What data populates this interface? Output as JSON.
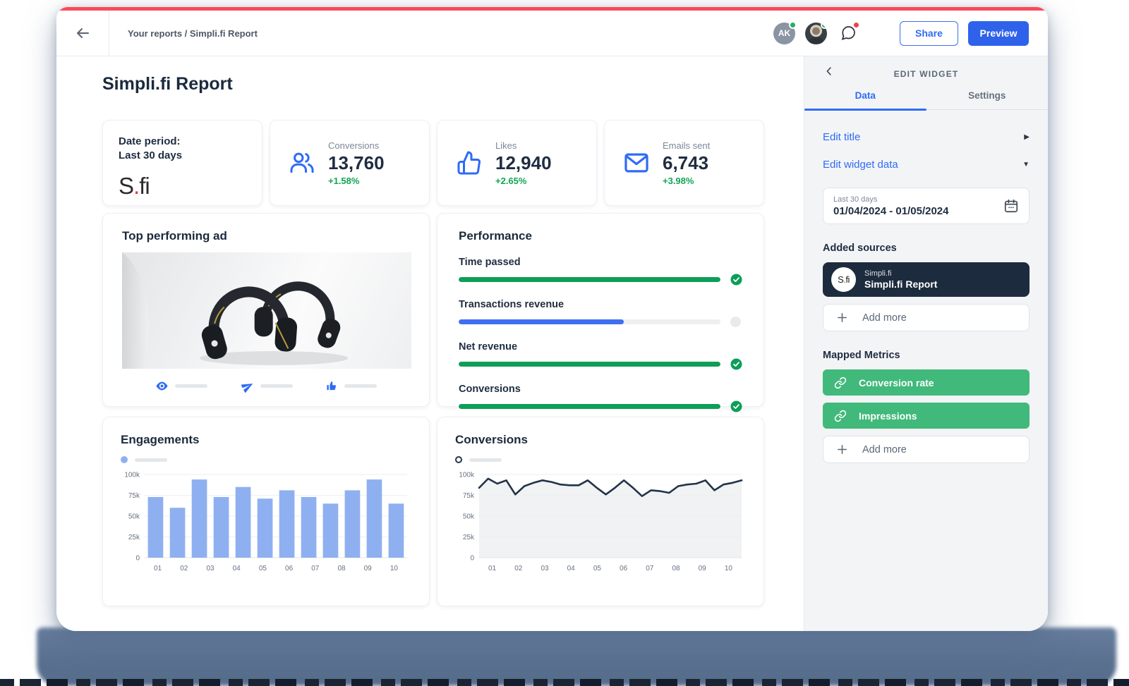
{
  "topbar": {
    "breadcrumb": "Your reports / Simpli.fi Report",
    "avatar_initials": "AK",
    "share_label": "Share",
    "preview_label": "Preview"
  },
  "page": {
    "title": "Simpli.fi Report"
  },
  "date_card": {
    "line1": "Date period:",
    "line2": "Last 30 days",
    "logo": {
      "s": "S",
      "dot": ".",
      "fi": "fi"
    }
  },
  "kpis": [
    {
      "icon": "users-icon",
      "label": "Conversions",
      "value": "13,760",
      "delta": "+1.58%"
    },
    {
      "icon": "thumbs-up-icon",
      "label": "Likes",
      "value": "12,940",
      "delta": "+2.65%"
    },
    {
      "icon": "mail-icon",
      "label": "Emails sent",
      "value": "6,743",
      "delta": "+3.98%"
    }
  ],
  "top_ad": {
    "title": "Top performing ad",
    "stat_icons": [
      "eye-icon",
      "send-icon",
      "thumbs-up-icon"
    ]
  },
  "performance": {
    "title": "Performance",
    "rows": [
      {
        "label": "Time passed",
        "percent": 100,
        "bar_color": "#0D9E57",
        "status": "complete"
      },
      {
        "label": "Transactions revenue",
        "percent": 63,
        "bar_color": "#3F6FF0",
        "status": "pending"
      },
      {
        "label": "Net revenue",
        "percent": 100,
        "bar_color": "#0D9E57",
        "status": "complete"
      },
      {
        "label": "Conversions",
        "percent": 100,
        "bar_color": "#0D9E57",
        "status": "complete"
      }
    ]
  },
  "chart_data": [
    {
      "type": "bar",
      "title": "Engagements",
      "x_tick_labels": [
        "01",
        "02",
        "03",
        "04",
        "05",
        "06",
        "07",
        "08",
        "09",
        "10"
      ],
      "values": [
        73000,
        60000,
        94000,
        73000,
        85000,
        71000,
        81000,
        73000,
        65000,
        81000,
        94000,
        65000
      ],
      "y_ticks": [
        0,
        25000,
        50000,
        75000,
        100000
      ],
      "y_tick_labels": [
        "0",
        "25k",
        "50k",
        "75k",
        "100k"
      ],
      "ylim": [
        0,
        100000
      ],
      "bar_color": "#8FB0F0",
      "grid": true,
      "legend": {
        "marker": "filled-dot",
        "color": "#8FB0F0",
        "position": "top-left"
      }
    },
    {
      "type": "line",
      "title": "Conversions",
      "x_tick_labels": [
        "01",
        "02",
        "03",
        "04",
        "05",
        "06",
        "07",
        "08",
        "09",
        "10"
      ],
      "values": [
        84000,
        95000,
        89000,
        93000,
        76000,
        86000,
        90000,
        93000,
        91000,
        88000,
        87000,
        87000,
        93000,
        84000,
        76000,
        84000,
        93000,
        84000,
        74000,
        81000,
        80000,
        78000,
        86000,
        88000,
        89000,
        93000,
        81000,
        88000,
        90000,
        93000
      ],
      "y_ticks": [
        0,
        25000,
        50000,
        75000,
        100000
      ],
      "y_tick_labels": [
        "0",
        "25k",
        "50k",
        "75k",
        "100k"
      ],
      "ylim": [
        0,
        100000
      ],
      "line_color": "#223349",
      "area_color": "#F1F2F3",
      "grid": true,
      "legend": {
        "marker": "hollow-dot",
        "color": "#27364C",
        "position": "top-left"
      }
    }
  ],
  "panel": {
    "header": "EDIT WIDGET",
    "tabs": [
      {
        "label": "Data",
        "active": true
      },
      {
        "label": "Settings",
        "active": false
      }
    ],
    "edit_title_label": "Edit title",
    "edit_widget_data_label": "Edit widget data",
    "date_picker": {
      "preset": "Last 30 days",
      "range": "01/04/2024 - 01/05/2024"
    },
    "added_sources_label": "Added sources",
    "source": {
      "network": "Simpli.fi",
      "report": "Simpli.fi Report",
      "logo": {
        "s": "S",
        "dot": ".",
        "fi": "fi"
      }
    },
    "add_more_label": "Add more",
    "mapped_metrics_label": "Mapped Metrics",
    "metrics": [
      "Conversion rate",
      "Impressions"
    ]
  },
  "colors": {
    "accent_blue": "#2F6BF6",
    "positive_green": "#12A454",
    "metric_green": "#41B97A",
    "bar_blue": "#8FB0F0",
    "navy_text": "#1C2B3D",
    "top_strip_red": "#FB4A5C"
  }
}
